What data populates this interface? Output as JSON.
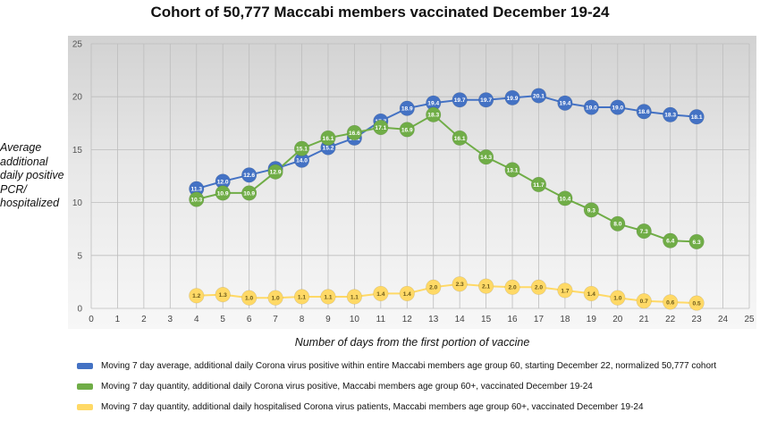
{
  "chart_data": {
    "type": "line",
    "title": "Cohort of 50,777 Maccabi members vaccinated December 19-24",
    "xlabel": "Number of days from the first portion of vaccine",
    "ylabel": "Average additional daily positive PCR/ hospitalized",
    "xlim": [
      0,
      25
    ],
    "ylim": [
      0,
      25
    ],
    "x_ticks": [
      "0",
      "1",
      "2",
      "3",
      "4",
      "5",
      "6",
      "7",
      "8",
      "9",
      "10",
      "11",
      "12",
      "13",
      "14",
      "15",
      "16",
      "17",
      "18",
      "19",
      "20",
      "21",
      "22",
      "23",
      "24",
      "25"
    ],
    "y_ticks": [
      "0",
      "5",
      "10",
      "15",
      "20",
      "25"
    ],
    "grid": true,
    "legend_position": "bottom",
    "series": [
      {
        "name": "Moving 7 day average, additional daily Corona virus positive within entire Maccabi members age group 60, starting December 22, normalized 50,777 cohort",
        "color": "#4472c4",
        "x": [
          4,
          5,
          6,
          7,
          8,
          9,
          10,
          11,
          12,
          13,
          14,
          15,
          16,
          17,
          18,
          19,
          20,
          21,
          22,
          23
        ],
        "values": [
          11.3,
          12.0,
          12.6,
          13.2,
          14.0,
          15.2,
          16.1,
          17.7,
          18.9,
          19.4,
          19.7,
          19.7,
          19.9,
          20.1,
          19.4,
          19.0,
          19.0,
          18.6,
          18.3,
          18.1
        ],
        "labels": [
          "11.3",
          "12.0",
          "12.6",
          "13.2",
          "14.0",
          "15.2",
          "16.1",
          "17.7",
          "18.9",
          "19.4",
          "19.7",
          "19.7",
          "19.9",
          "20.1",
          "19.4",
          "19.0",
          "19.0",
          "18.6",
          "18.3",
          "18.1"
        ]
      },
      {
        "name": "Moving 7 day quantity, additional daily Corona virus positive, Maccabi members age group 60+, vaccinated December 19-24",
        "color": "#70ad47",
        "x": [
          4,
          5,
          6,
          7,
          8,
          9,
          10,
          11,
          12,
          13,
          14,
          15,
          16,
          17,
          18,
          19,
          20,
          21,
          22,
          23
        ],
        "values": [
          10.3,
          10.9,
          10.9,
          12.9,
          15.1,
          16.1,
          16.6,
          17.1,
          16.9,
          18.3,
          16.1,
          14.3,
          13.1,
          11.7,
          10.4,
          9.3,
          8.0,
          7.3,
          6.4,
          6.3
        ],
        "labels": [
          "10.3",
          "10.9",
          "10.9",
          "12.9",
          "15.1",
          "16.1",
          "16.6",
          "17.1",
          "16.9",
          "18.3",
          "16.1",
          "14.3",
          "13.1",
          "11.7",
          "10.4",
          "9.3",
          "8.0",
          "7.3",
          "6.4",
          "6.3"
        ]
      },
      {
        "name": "Moving 7 day quantity, additional daily hospitalised Corona virus patients, Maccabi members age group 60+, vaccinated December 19-24",
        "color": "#ffd966",
        "x": [
          4,
          5,
          6,
          7,
          8,
          9,
          10,
          11,
          12,
          13,
          14,
          15,
          16,
          17,
          18,
          19,
          20,
          21,
          22,
          23
        ],
        "values": [
          1.2,
          1.3,
          1.0,
          1.0,
          1.1,
          1.1,
          1.1,
          1.4,
          1.4,
          2.0,
          2.3,
          2.1,
          2.0,
          2.0,
          1.7,
          1.4,
          1.0,
          0.7,
          0.6,
          0.5
        ],
        "labels": [
          "1.2",
          "1.3",
          "1.0",
          "1.0",
          "1.1",
          "1.1",
          "1.1",
          "1.4",
          "1.4",
          "2.0",
          "2.3",
          "2.1",
          "2.0",
          "2.0",
          "1.7",
          "1.4",
          "1.0",
          "0.7",
          "0.6",
          "0.5"
        ]
      }
    ]
  }
}
